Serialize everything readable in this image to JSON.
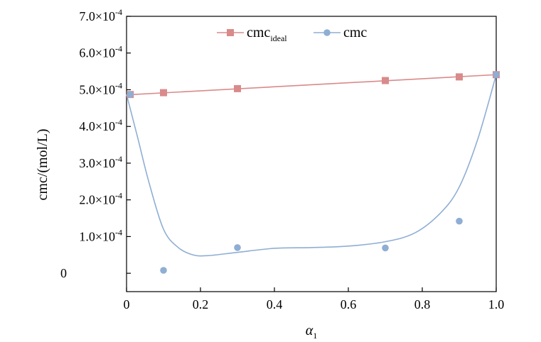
{
  "chart_data": {
    "type": "line",
    "xlabel": "α",
    "xlabel_subscript": "1",
    "ylabel": "cmc/(mol/L)",
    "xlim": [
      0,
      1.0
    ],
    "ylim": [
      -5e-05,
      0.0007
    ],
    "x_ticks": [
      0,
      0.2,
      0.4,
      0.6,
      0.8,
      1.0
    ],
    "x_tick_labels": [
      "0",
      "0.2",
      "0.4",
      "0.6",
      "0.8",
      "1.0"
    ],
    "y_ticks": [
      0,
      0.0001,
      0.0002,
      0.0003,
      0.0004,
      0.0005,
      0.0006,
      0.0007
    ],
    "y_tick_labels": [
      {
        "mantissa": "0",
        "exp": ""
      },
      {
        "mantissa": "1.0×10",
        "exp": "-4"
      },
      {
        "mantissa": "2.0×10",
        "exp": "-4"
      },
      {
        "mantissa": "3.0×10",
        "exp": "-4"
      },
      {
        "mantissa": "4.0×10",
        "exp": "-4"
      },
      {
        "mantissa": "5.0×10",
        "exp": "-4"
      },
      {
        "mantissa": "6.0×10",
        "exp": "-4"
      },
      {
        "mantissa": "7.0×10",
        "exp": "-4"
      }
    ],
    "legend_position": "top",
    "grid": false,
    "series": [
      {
        "name": "cmc",
        "name_subscript": "ideal",
        "color": "#d98a8a",
        "marker": "square",
        "points": [
          {
            "x": 0.01,
            "y": 0.000487
          },
          {
            "x": 0.1,
            "y": 0.000492
          },
          {
            "x": 0.3,
            "y": 0.000503
          },
          {
            "x": 0.7,
            "y": 0.000525
          },
          {
            "x": 0.9,
            "y": 0.000535
          },
          {
            "x": 1.0,
            "y": 0.000541
          }
        ],
        "curve": [
          {
            "x": 0.0,
            "y": 0.000486
          },
          {
            "x": 1.0,
            "y": 0.000541
          }
        ]
      },
      {
        "name": "cmc",
        "name_subscript": "",
        "color": "#8faed4",
        "marker": "circle",
        "points": [
          {
            "x": 0.01,
            "y": 0.000487
          },
          {
            "x": 0.1,
            "y": 8e-06
          },
          {
            "x": 0.3,
            "y": 7e-05
          },
          {
            "x": 0.7,
            "y": 6.9e-05
          },
          {
            "x": 0.9,
            "y": 0.000142
          },
          {
            "x": 1.0,
            "y": 0.000541
          }
        ],
        "curve": [
          {
            "x": 0.0,
            "y": 0.000487
          },
          {
            "x": 0.03,
            "y": 0.00037
          },
          {
            "x": 0.06,
            "y": 0.00025
          },
          {
            "x": 0.1,
            "y": 0.00012
          },
          {
            "x": 0.14,
            "y": 7e-05
          },
          {
            "x": 0.18,
            "y": 5e-05
          },
          {
            "x": 0.22,
            "y": 4.8e-05
          },
          {
            "x": 0.3,
            "y": 5.7e-05
          },
          {
            "x": 0.4,
            "y": 6.8e-05
          },
          {
            "x": 0.5,
            "y": 7e-05
          },
          {
            "x": 0.6,
            "y": 7.4e-05
          },
          {
            "x": 0.7,
            "y": 8.6e-05
          },
          {
            "x": 0.78,
            "y": 0.00011
          },
          {
            "x": 0.85,
            "y": 0.000165
          },
          {
            "x": 0.9,
            "y": 0.000235
          },
          {
            "x": 0.95,
            "y": 0.000365
          },
          {
            "x": 1.0,
            "y": 0.000541
          }
        ]
      }
    ]
  }
}
